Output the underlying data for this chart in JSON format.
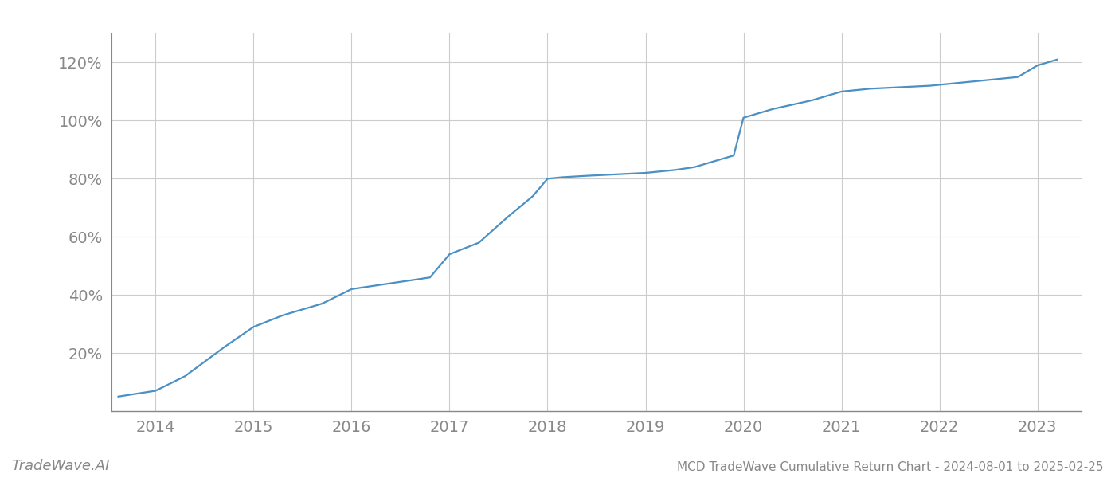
{
  "title": "MCD TradeWave Cumulative Return Chart - 2024-08-01 to 2025-02-25",
  "watermark": "TradeWave.AI",
  "line_color": "#4a90c4",
  "background_color": "#ffffff",
  "grid_color": "#cccccc",
  "x_years": [
    2013.62,
    2014.0,
    2014.3,
    2014.7,
    2015.0,
    2015.3,
    2015.7,
    2016.0,
    2016.4,
    2016.8,
    2017.0,
    2017.3,
    2017.6,
    2017.85,
    2018.0,
    2018.15,
    2018.4,
    2018.7,
    2019.0,
    2019.3,
    2019.5,
    2019.7,
    2019.9,
    2020.0,
    2020.3,
    2020.7,
    2021.0,
    2021.3,
    2021.6,
    2021.9,
    2022.2,
    2022.5,
    2022.8,
    2023.0,
    2023.2
  ],
  "y_values": [
    5,
    7,
    12,
    22,
    29,
    33,
    37,
    42,
    44,
    46,
    54,
    58,
    67,
    74,
    80,
    80.5,
    81,
    81.5,
    82,
    83,
    84,
    86,
    88,
    101,
    104,
    107,
    110,
    111,
    111.5,
    112,
    113,
    114,
    115,
    119,
    121
  ],
  "yticks": [
    20,
    40,
    60,
    80,
    100,
    120
  ],
  "xticks": [
    2014,
    2015,
    2016,
    2017,
    2018,
    2019,
    2020,
    2021,
    2022,
    2023
  ],
  "xlim": [
    2013.55,
    2023.45
  ],
  "ylim": [
    0,
    130
  ],
  "title_fontsize": 11,
  "tick_fontsize": 14,
  "line_width": 1.6,
  "watermark_fontsize": 13,
  "tick_color": "#888888",
  "spine_color": "#888888"
}
